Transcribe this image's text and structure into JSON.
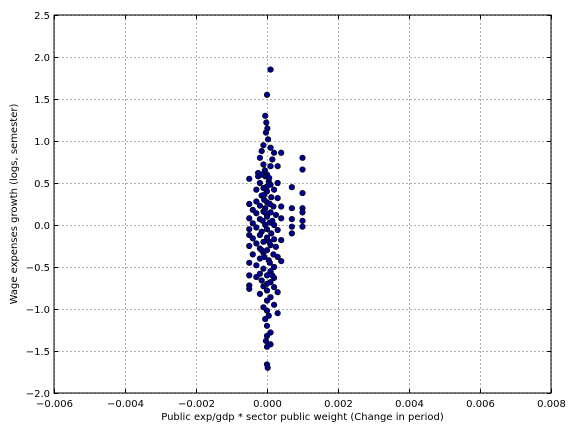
{
  "chart_data": {
    "type": "scatter",
    "title": "",
    "xlabel": "Public exp/gdp * sector public weight (Change in period)",
    "ylabel": "Wage expenses growth (logs, semester)",
    "xlim": [
      -0.006,
      0.008
    ],
    "ylim": [
      -2.0,
      2.5
    ],
    "grid": true,
    "x_ticks": [
      -0.006,
      -0.004,
      -0.002,
      0.0,
      0.002,
      0.004,
      0.006,
      0.008
    ],
    "x_tick_labels": [
      "−0.006",
      "−0.004",
      "−0.002",
      "0.000",
      "0.002",
      "0.004",
      "0.006",
      "0.008"
    ],
    "y_ticks": [
      -2.0,
      -1.5,
      -1.0,
      -0.5,
      0.0,
      0.5,
      1.0,
      1.5,
      2.0,
      2.5
    ],
    "y_tick_labels": [
      "−2.0",
      "−1.5",
      "−1.0",
      "−0.5",
      "0.0",
      "0.5",
      "1.0",
      "1.5",
      "2.0",
      "2.5"
    ],
    "marker_color": "#00008b",
    "marker_edge": "#000000",
    "points": [
      {
        "x": 0.0001,
        "y": 1.85
      },
      {
        "x": 0.0,
        "y": 1.55
      },
      {
        "x": -5e-05,
        "y": 1.3
      },
      {
        "x": -2e-05,
        "y": 1.22
      },
      {
        "x": 1e-05,
        "y": 1.15
      },
      {
        "x": -3e-05,
        "y": 1.1
      },
      {
        "x": 3e-05,
        "y": 1.02
      },
      {
        "x": -0.0001,
        "y": 0.95
      },
      {
        "x": 0.0001,
        "y": 0.92
      },
      {
        "x": -0.00015,
        "y": 0.88
      },
      {
        "x": 0.0002,
        "y": 0.86
      },
      {
        "x": 0.0004,
        "y": 0.86
      },
      {
        "x": -0.0002,
        "y": 0.8
      },
      {
        "x": 0.00015,
        "y": 0.78
      },
      {
        "x": 0.001,
        "y": 0.8
      },
      {
        "x": -0.0001,
        "y": 0.72
      },
      {
        "x": 0.0001,
        "y": 0.7
      },
      {
        "x": 0.0003,
        "y": 0.7
      },
      {
        "x": 0.001,
        "y": 0.66
      },
      {
        "x": -0.00025,
        "y": 0.62
      },
      {
        "x": 0.0,
        "y": 0.6
      },
      {
        "x": -5e-05,
        "y": 0.58
      },
      {
        "x": -0.00025,
        "y": 0.58
      },
      {
        "x": -0.0005,
        "y": 0.55
      },
      {
        "x": 5e-05,
        "y": 0.52
      },
      {
        "x": -0.0002,
        "y": 0.5
      },
      {
        "x": 0.0001,
        "y": 0.48
      },
      {
        "x": 0.0003,
        "y": 0.5
      },
      {
        "x": 0.0007,
        "y": 0.45
      },
      {
        "x": -0.0001,
        "y": 0.44
      },
      {
        "x": -0.0003,
        "y": 0.42
      },
      {
        "x": 0.0002,
        "y": 0.42
      },
      {
        "x": 0.0,
        "y": 0.4
      },
      {
        "x": 0.001,
        "y": 0.38
      },
      {
        "x": -0.00015,
        "y": 0.35
      },
      {
        "x": 0.00012,
        "y": 0.33
      },
      {
        "x": 0.0003,
        "y": 0.32
      },
      {
        "x": -8e-05,
        "y": 0.3
      },
      {
        "x": -0.0003,
        "y": 0.28
      },
      {
        "x": 0.0,
        "y": 0.27
      },
      {
        "x": -0.0005,
        "y": 0.25
      },
      {
        "x": -0.0002,
        "y": 0.23
      },
      {
        "x": 0.00018,
        "y": 0.22
      },
      {
        "x": 0.0004,
        "y": 0.22
      },
      {
        "x": 0.0007,
        "y": 0.2
      },
      {
        "x": 0.001,
        "y": 0.2
      },
      {
        "x": -5e-05,
        "y": 0.2
      },
      {
        "x": -0.0004,
        "y": 0.18
      },
      {
        "x": -0.0001,
        "y": 0.16
      },
      {
        "x": 0.0001,
        "y": 0.15
      },
      {
        "x": 0.001,
        "y": 0.15
      },
      {
        "x": -0.0003,
        "y": 0.14
      },
      {
        "x": 0.00025,
        "y": 0.12
      },
      {
        "x": 0.0,
        "y": 0.1
      },
      {
        "x": -0.0005,
        "y": 0.08
      },
      {
        "x": -0.0002,
        "y": 0.07
      },
      {
        "x": 0.0004,
        "y": 0.08
      },
      {
        "x": 0.0007,
        "y": 0.07
      },
      {
        "x": 0.001,
        "y": 0.05
      },
      {
        "x": -0.00012,
        "y": 0.05
      },
      {
        "x": 8e-05,
        "y": 0.03
      },
      {
        "x": -0.0004,
        "y": 0.02
      },
      {
        "x": -5e-05,
        "y": 0.0
      },
      {
        "x": 0.0002,
        "y": 0.0
      },
      {
        "x": 0.0007,
        "y": -0.02
      },
      {
        "x": -0.0003,
        "y": -0.03
      },
      {
        "x": 0.001,
        "y": -0.02
      },
      {
        "x": 0.0,
        "y": -0.05
      },
      {
        "x": -0.0005,
        "y": -0.05
      },
      {
        "x": 0.0003,
        "y": -0.06
      },
      {
        "x": -0.00015,
        "y": -0.08
      },
      {
        "x": 0.00012,
        "y": -0.1
      },
      {
        "x": -0.0005,
        "y": -0.12
      },
      {
        "x": -0.0002,
        "y": -0.12
      },
      {
        "x": 0.0007,
        "y": -0.1
      },
      {
        "x": 0.0,
        "y": -0.15
      },
      {
        "x": -0.0004,
        "y": -0.16
      },
      {
        "x": 0.0002,
        "y": -0.17
      },
      {
        "x": -0.0001,
        "y": -0.2
      },
      {
        "x": 0.0004,
        "y": -0.18
      },
      {
        "x": -0.0003,
        "y": -0.22
      },
      {
        "x": 0.0001,
        "y": -0.24
      },
      {
        "x": -0.0005,
        "y": -0.25
      },
      {
        "x": 0.00025,
        "y": -0.26
      },
      {
        "x": -0.0002,
        "y": -0.28
      },
      {
        "x": 0.0,
        "y": -0.3
      },
      {
        "x": -0.0001,
        "y": -0.33
      },
      {
        "x": 0.00018,
        "y": -0.35
      },
      {
        "x": -0.0004,
        "y": -0.35
      },
      {
        "x": 0.0003,
        "y": -0.38
      },
      {
        "x": -0.0002,
        "y": -0.4
      },
      {
        "x": 5e-05,
        "y": -0.42
      },
      {
        "x": 0.0004,
        "y": -0.43
      },
      {
        "x": -0.0005,
        "y": -0.45
      },
      {
        "x": -0.0003,
        "y": -0.48
      },
      {
        "x": 0.0002,
        "y": -0.5
      },
      {
        "x": -0.0001,
        "y": -0.52
      },
      {
        "x": 0.0001,
        "y": -0.55
      },
      {
        "x": -0.0002,
        "y": -0.58
      },
      {
        "x": -0.0005,
        "y": -0.6
      },
      {
        "x": 0.0,
        "y": -0.6
      },
      {
        "x": 0.0002,
        "y": -0.63
      },
      {
        "x": -0.0003,
        "y": -0.62
      },
      {
        "x": -0.00015,
        "y": -0.66
      },
      {
        "x": 0.0001,
        "y": -0.68
      },
      {
        "x": -0.0005,
        "y": -0.72
      },
      {
        "x": -0.0001,
        "y": -0.73
      },
      {
        "x": 0.0002,
        "y": -0.74
      },
      {
        "x": -0.0005,
        "y": -0.76
      },
      {
        "x": 0.0,
        "y": -0.78
      },
      {
        "x": 0.0003,
        "y": -0.8
      },
      {
        "x": -0.0002,
        "y": -0.82
      },
      {
        "x": 0.0001,
        "y": -0.86
      },
      {
        "x": 0.0,
        "y": -0.9
      },
      {
        "x": 0.0002,
        "y": -0.95
      },
      {
        "x": -0.0001,
        "y": -0.98
      },
      {
        "x": 0.0,
        "y": -1.02
      },
      {
        "x": 0.0003,
        "y": -1.05
      },
      {
        "x": 5e-05,
        "y": -1.08
      },
      {
        "x": -5e-05,
        "y": -1.12
      },
      {
        "x": 0.0,
        "y": -1.2
      },
      {
        "x": 0.0001,
        "y": -1.28
      },
      {
        "x": 0.0,
        "y": -1.32
      },
      {
        "x": -3e-05,
        "y": -1.38
      },
      {
        "x": 0.0001,
        "y": -1.42
      },
      {
        "x": 0.0,
        "y": -1.45
      },
      {
        "x": 0.0,
        "y": -1.66
      },
      {
        "x": 2e-05,
        "y": -1.7
      },
      {
        "x": -8e-05,
        "y": 0.36
      },
      {
        "x": 8e-05,
        "y": 0.25
      },
      {
        "x": -6e-05,
        "y": 0.15
      },
      {
        "x": 6e-05,
        "y": -0.2
      },
      {
        "x": -8e-05,
        "y": -0.38
      },
      {
        "x": 8e-05,
        "y": -0.45
      },
      {
        "x": -6e-05,
        "y": 0.65
      },
      {
        "x": 6e-05,
        "y": 0.56
      },
      {
        "x": 0.0,
        "y": 0.46
      },
      {
        "x": 0.0,
        "y": -0.7
      },
      {
        "x": 0.00015,
        "y": 0.05
      },
      {
        "x": -0.00015,
        "y": -0.3
      },
      {
        "x": 0.00015,
        "y": -0.6
      },
      {
        "x": -0.00015,
        "y": 0.6
      }
    ]
  }
}
